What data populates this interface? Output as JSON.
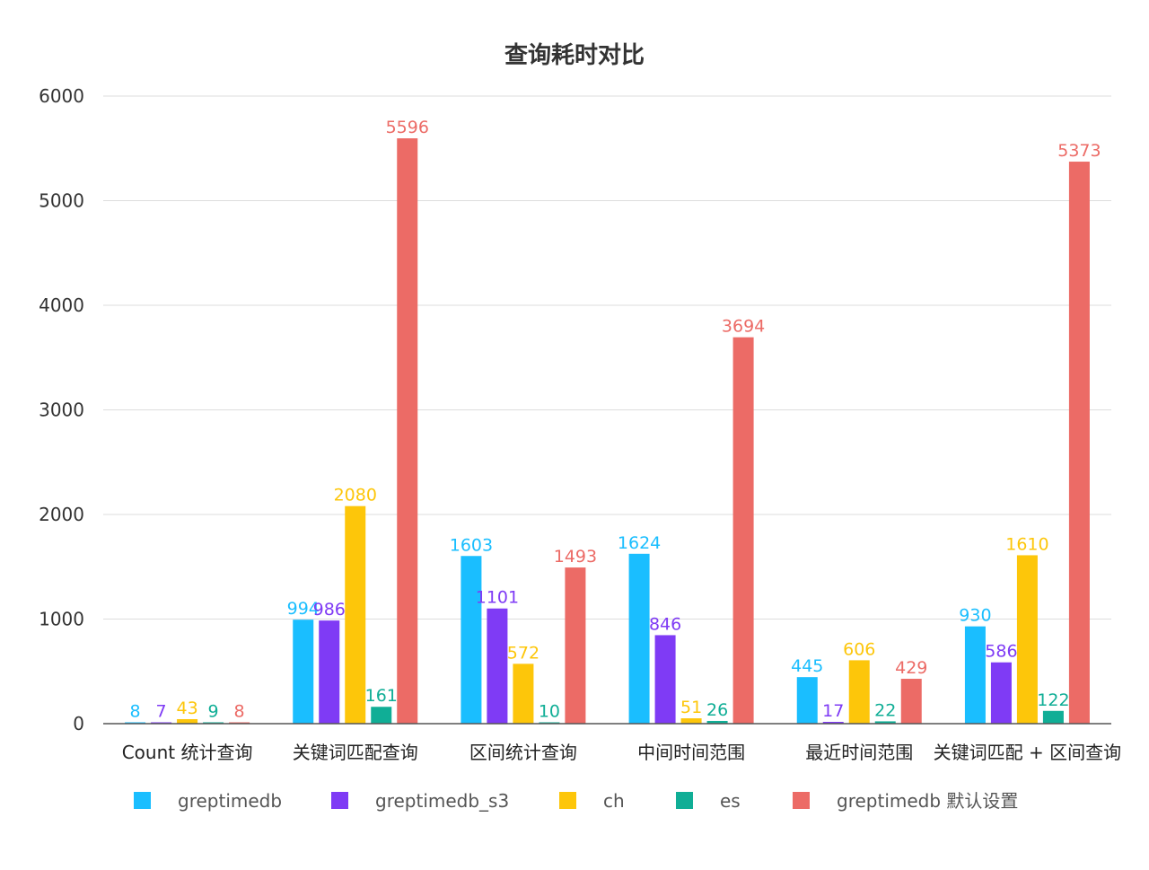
{
  "chart_data": {
    "type": "bar",
    "title": "查询耗时对比",
    "xlabel": "",
    "ylabel": "",
    "ylim": [
      0,
      6000
    ],
    "yticks": [
      0,
      1000,
      2000,
      3000,
      4000,
      5000,
      6000
    ],
    "grid": true,
    "legend_position": "bottom",
    "categories": [
      "Count 统计查询",
      "关键词匹配查询",
      "区间统计查询",
      "中间时间范围",
      "最近时间范围",
      "关键词匹配 + 区间查询"
    ],
    "series": [
      {
        "name": "greptimedb",
        "color": "#1ABEFF",
        "values": [
          8,
          994,
          1603,
          1624,
          445,
          930
        ]
      },
      {
        "name": "greptimedb_s3",
        "color": "#7F3BF5",
        "values": [
          7,
          986,
          1101,
          846,
          17,
          586
        ]
      },
      {
        "name": "ch",
        "color": "#FDC60A",
        "values": [
          43,
          2080,
          572,
          51,
          606,
          1610
        ]
      },
      {
        "name": "es",
        "color": "#10AE96",
        "values": [
          9,
          161,
          10,
          26,
          22,
          122
        ]
      },
      {
        "name": "greptimedb 默认设置",
        "color": "#EC6B66",
        "values": [
          8,
          5596,
          1493,
          3694,
          429,
          5373
        ]
      }
    ]
  }
}
